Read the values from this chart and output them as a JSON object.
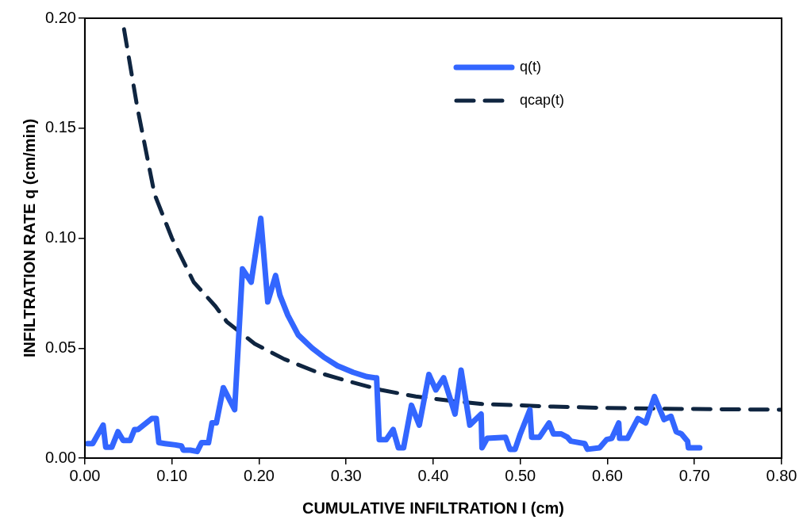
{
  "chart_data": {
    "type": "line",
    "xlabel": "CUMULATIVE INFILTRATION I (cm)",
    "ylabel": "INFILTRATION RATE q (cm/min)",
    "xlim": [
      0,
      0.8
    ],
    "ylim": [
      0,
      0.2
    ],
    "xticks": [
      {
        "value": 0,
        "label": "0.00"
      },
      {
        "value": 0.1,
        "label": "0.10"
      },
      {
        "value": 0.2,
        "label": "0.20"
      },
      {
        "value": 0.3,
        "label": "0.30"
      },
      {
        "value": 0.4,
        "label": "0.40"
      },
      {
        "value": 0.5,
        "label": "0.50"
      },
      {
        "value": 0.6,
        "label": "0.60"
      },
      {
        "value": 0.7,
        "label": "0.70"
      },
      {
        "value": 0.8,
        "label": "0.80"
      }
    ],
    "yticks": [
      {
        "value": 0,
        "label": "0.00"
      },
      {
        "value": 0.05,
        "label": "0.05"
      },
      {
        "value": 0.1,
        "label": "0.10"
      },
      {
        "value": 0.15,
        "label": "0.15"
      },
      {
        "value": 0.2,
        "label": "0.20"
      }
    ],
    "grid": false,
    "legend": "top right",
    "marker": "none",
    "series": [
      {
        "name": "q(t)",
        "color": "#3366ff",
        "line_style": "solid",
        "x": [
          0.003,
          0.009,
          0.021,
          0.024,
          0.031,
          0.038,
          0.044,
          0.052,
          0.057,
          0.061,
          0.077,
          0.082,
          0.085,
          0.092,
          0.104,
          0.111,
          0.113,
          0.121,
          0.129,
          0.134,
          0.142,
          0.146,
          0.151,
          0.159,
          0.172,
          0.181,
          0.191,
          0.202,
          0.21,
          0.219,
          0.224,
          0.233,
          0.245,
          0.261,
          0.274,
          0.29,
          0.308,
          0.324,
          0.333,
          0.335,
          0.338,
          0.346,
          0.354,
          0.36,
          0.366,
          0.375,
          0.384,
          0.395,
          0.403,
          0.412,
          0.425,
          0.432,
          0.442,
          0.455,
          0.456,
          0.462,
          0.483,
          0.488,
          0.494,
          0.5,
          0.511,
          0.513,
          0.522,
          0.533,
          0.538,
          0.547,
          0.554,
          0.558,
          0.574,
          0.577,
          0.591,
          0.599,
          0.605,
          0.613,
          0.614,
          0.623,
          0.635,
          0.644,
          0.654,
          0.665,
          0.673,
          0.679,
          0.685,
          0.692,
          0.693,
          0.706
        ],
        "values": [
          0.0066,
          0.0066,
          0.015,
          0.005,
          0.005,
          0.012,
          0.008,
          0.008,
          0.013,
          0.013,
          0.018,
          0.018,
          0.007,
          0.0066,
          0.006,
          0.0055,
          0.0036,
          0.0036,
          0.003,
          0.007,
          0.007,
          0.016,
          0.016,
          0.032,
          0.022,
          0.086,
          0.08,
          0.109,
          0.071,
          0.083,
          0.074,
          0.065,
          0.056,
          0.05,
          0.046,
          0.042,
          0.039,
          0.037,
          0.0365,
          0.0365,
          0.0084,
          0.0084,
          0.013,
          0.0047,
          0.0047,
          0.024,
          0.015,
          0.038,
          0.031,
          0.0365,
          0.02,
          0.04,
          0.015,
          0.02,
          0.0047,
          0.009,
          0.0095,
          0.004,
          0.004,
          0.011,
          0.022,
          0.0095,
          0.0095,
          0.016,
          0.011,
          0.011,
          0.0095,
          0.0077,
          0.0066,
          0.004,
          0.0047,
          0.0084,
          0.009,
          0.016,
          0.009,
          0.009,
          0.018,
          0.016,
          0.028,
          0.0175,
          0.019,
          0.012,
          0.011,
          0.0077,
          0.0047,
          0.0047
        ]
      },
      {
        "name": "qcap(t)",
        "color": "#0f2540",
        "line_style": "dashed",
        "x": [
          0.045,
          0.06,
          0.08,
          0.1,
          0.125,
          0.15,
          0.163,
          0.195,
          0.229,
          0.267,
          0.302,
          0.34,
          0.38,
          0.421,
          0.459,
          0.498,
          0.538,
          0.6,
          0.7,
          0.8
        ],
        "values": [
          0.195,
          0.16,
          0.12,
          0.1,
          0.08,
          0.069,
          0.062,
          0.052,
          0.045,
          0.039,
          0.035,
          0.031,
          0.028,
          0.026,
          0.0245,
          0.024,
          0.0234,
          0.0228,
          0.0223,
          0.022
        ]
      }
    ]
  }
}
